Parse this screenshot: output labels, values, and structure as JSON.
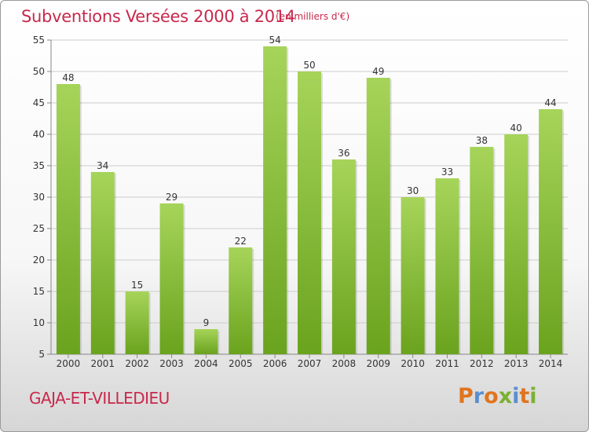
{
  "header": {
    "title": "Subventions Versées 2000 à 2014",
    "unit": "(en milliers d'€)"
  },
  "footer": {
    "place": "GAJA-ET-VILLEDIEU",
    "logo": "Proxiti"
  },
  "colors": {
    "title": "#c8284b",
    "bar_light": "#a6d45a",
    "bar_dark": "#6aa31e",
    "grid": "#cccccc",
    "logo_letters": [
      "#e0751f",
      "#5a8fd0",
      "#e0751f",
      "#7cb032",
      "#5a8fd0",
      "#e0751f",
      "#7cb032"
    ]
  },
  "chart_data": {
    "type": "bar",
    "title": "Subventions Versées 2000 à 2014",
    "categories": [
      "2000",
      "2001",
      "2002",
      "2003",
      "2004",
      "2005",
      "2006",
      "2007",
      "2008",
      "2009",
      "2010",
      "2011",
      "2012",
      "2013",
      "2014"
    ],
    "values": [
      48,
      34,
      15,
      29,
      9,
      22,
      54,
      50,
      36,
      49,
      30,
      33,
      38,
      40,
      44
    ],
    "ylim": [
      5,
      55
    ],
    "yticks": [
      5,
      10,
      15,
      20,
      25,
      30,
      35,
      40,
      45,
      50,
      55
    ],
    "grid": true,
    "data_labels": true
  }
}
